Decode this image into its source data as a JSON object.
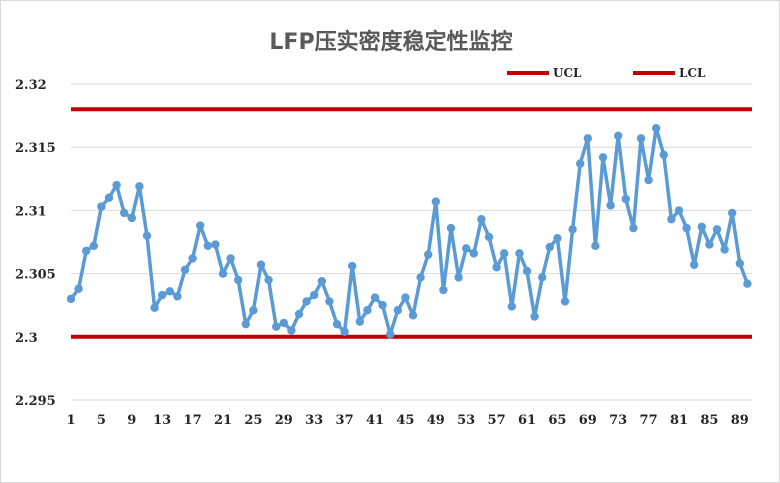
{
  "chart_data": {
    "type": "line",
    "title": "LFP压实密度稳定性监控",
    "xlabel": "",
    "ylabel": "",
    "ylim": [
      2.295,
      2.32
    ],
    "yticks": [
      2.295,
      2.3,
      2.305,
      2.31,
      2.315,
      2.32
    ],
    "ytick_labels": [
      "2.295",
      "2.3",
      "2.305",
      "2.31",
      "2.315",
      "2.32"
    ],
    "xticks": [
      1,
      5,
      9,
      13,
      17,
      21,
      25,
      29,
      33,
      37,
      41,
      45,
      49,
      53,
      57,
      61,
      65,
      69,
      73,
      77,
      81,
      85,
      89
    ],
    "xtick_labels": [
      "1",
      "5",
      "9",
      "13",
      "17",
      "21",
      "25",
      "29",
      "33",
      "37",
      "41",
      "45",
      "49",
      "53",
      "57",
      "61",
      "65",
      "69",
      "73",
      "77",
      "81",
      "85",
      "89"
    ],
    "grid": "horizontal",
    "legend": {
      "placement": "top-right",
      "entries": [
        "UCL",
        "LCL"
      ]
    },
    "colors": {
      "series": "#5b9bd5",
      "limit": "#c00000",
      "grid": "#d9d9d9"
    },
    "limits": [
      {
        "name": "UCL",
        "value": 2.318
      },
      {
        "name": "LCL",
        "value": 2.3
      }
    ],
    "series": [
      {
        "values": [
          2.303,
          2.3038,
          2.3068,
          2.3072,
          2.3103,
          2.311,
          2.312,
          2.3098,
          2.3094,
          2.3119,
          2.308,
          2.3023,
          2.3033,
          2.3036,
          2.3032,
          2.3053,
          2.3062,
          2.3088,
          2.3072,
          2.3073,
          2.305,
          2.3062,
          2.3045,
          2.301,
          2.3021,
          2.3057,
          2.3045,
          2.3008,
          2.3011,
          2.3005,
          2.3018,
          2.3028,
          2.3033,
          2.3044,
          2.3028,
          2.301,
          2.3004,
          2.3056,
          2.3012,
          2.3021,
          2.3031,
          2.3025,
          2.3002,
          2.3021,
          2.3031,
          2.3017,
          2.3047,
          2.3065,
          2.3107,
          2.3037,
          2.3086,
          2.3047,
          2.307,
          2.3066,
          2.3093,
          2.3079,
          2.3055,
          2.3066,
          2.3024,
          2.3066,
          2.3052,
          2.3016,
          2.3047,
          2.3071,
          2.3078,
          2.3028,
          2.3085,
          2.3137,
          2.3157,
          2.3072,
          2.3142,
          2.3104,
          2.3159,
          2.3109,
          2.3086,
          2.3157,
          2.3124,
          2.3165,
          2.3144,
          2.3093,
          2.31,
          2.3086,
          2.3057,
          2.3087,
          2.3073,
          2.3085,
          2.3069,
          2.3098,
          2.3058,
          2.3042
        ]
      }
    ]
  }
}
